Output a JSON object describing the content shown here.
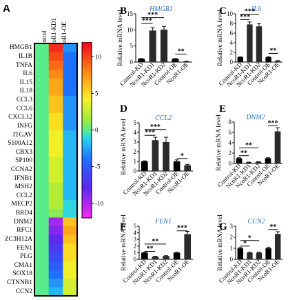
{
  "panel_a": {
    "letter": "A",
    "columns": [
      "Control",
      "NcoR1-KD1",
      "NcoR1-OE"
    ],
    "genes": [
      "HMGB1",
      "IL1B",
      "TNFA",
      "IL6",
      "IL15",
      "IL18",
      "CCL3",
      "CCL6",
      "CXCL12",
      "INFG",
      "ITGAV",
      "S100A12",
      "CBX3",
      "SP100",
      "CCNA2",
      "IFNB1",
      "MSH2",
      "CCL2",
      "MECP2",
      "BRD4",
      "DNM2",
      "RFC1",
      "ZC3H12A",
      "FEN1",
      "PLG",
      "CMA1",
      "SOX18",
      "CTNNB1",
      "CCN2"
    ],
    "colorbar_ticks": [
      "10",
      "5",
      "0",
      "-5",
      "-10"
    ]
  },
  "chart_data": [
    {
      "type": "heatmap",
      "columns": [
        "Control",
        "NcoR1-KD1",
        "NcoR1-OE"
      ],
      "rows": [
        "HMGB1",
        "IL1B",
        "TNFA",
        "IL6",
        "IL15",
        "IL18",
        "CCL3",
        "CCL6",
        "CXCL12",
        "INFG",
        "ITGAV",
        "S100A12",
        "CBX3",
        "SP100",
        "CCNA2",
        "IFNB1",
        "MSH2",
        "CCL2",
        "MECP2",
        "BRD4",
        "DNM2",
        "RFC1",
        "ZC3H12A",
        "FEN1",
        "PLG",
        "CMA1",
        "SOX18",
        "CTNNB1",
        "CCN2"
      ],
      "values": [
        [
          0,
          11,
          -3
        ],
        [
          0,
          10,
          -4
        ],
        [
          0,
          9,
          -4
        ],
        [
          0,
          8,
          -4
        ],
        [
          0,
          7,
          -4
        ],
        [
          0,
          7,
          -4
        ],
        [
          0,
          6,
          -3
        ],
        [
          0,
          6,
          -3
        ],
        [
          0,
          5,
          -3
        ],
        [
          0,
          5,
          -3
        ],
        [
          0,
          4,
          -2
        ],
        [
          0,
          4,
          -2
        ],
        [
          0,
          4,
          -2
        ],
        [
          0,
          3,
          -2
        ],
        [
          0,
          3,
          -2
        ],
        [
          0,
          3,
          -2
        ],
        [
          0,
          2,
          -2
        ],
        [
          0,
          2,
          -2
        ],
        [
          0,
          2,
          -1
        ],
        [
          0,
          1,
          -1
        ],
        [
          0,
          -10,
          6
        ],
        [
          0,
          -9,
          7
        ],
        [
          0,
          -8,
          6
        ],
        [
          0,
          -7,
          5
        ],
        [
          0,
          -6,
          5
        ],
        [
          0,
          -5,
          4
        ],
        [
          0,
          -4,
          4
        ],
        [
          0,
          -3,
          3
        ],
        [
          0,
          -2,
          3
        ]
      ],
      "vmin": -12,
      "vmax": 12,
      "colorbar_ticks": [
        10,
        5,
        0,
        -5,
        -10
      ]
    },
    {
      "type": "bar",
      "panel": "B",
      "title": "HMGB1",
      "ylabel": "Relative mRNA level",
      "categories": [
        "Control-KD",
        "NcoR1-KD1",
        "NcoR1-KD2",
        "Control-OE",
        "NcoR1-OE"
      ],
      "values": [
        1,
        9.8,
        10.1,
        1,
        0.2
      ],
      "errors": [
        0.1,
        0.9,
        1.0,
        0.1,
        0.1
      ],
      "ylim": [
        0,
        15
      ],
      "yticks": [
        0,
        5,
        10,
        15
      ],
      "sig": [
        {
          "a": 0,
          "b": 1,
          "label": "***",
          "y": 12.0
        },
        {
          "a": 0,
          "b": 2,
          "label": "***",
          "y": 13.8
        },
        {
          "a": 3,
          "b": 4,
          "label": "**",
          "y": 2.5
        }
      ]
    },
    {
      "type": "bar",
      "panel": "C",
      "title": "IL6",
      "ylabel": "Relative mRNA level",
      "categories": [
        "Control-KD",
        "NcoR1-KD1",
        "NcoR1-KD2",
        "Control-OE",
        "NcoR1-OE"
      ],
      "values": [
        1,
        7.8,
        7.4,
        1,
        0.2
      ],
      "errors": [
        0.1,
        0.5,
        0.6,
        0.1,
        0.1
      ],
      "ylim": [
        0,
        10
      ],
      "yticks": [
        0,
        2,
        4,
        6,
        8,
        10
      ],
      "sig": [
        {
          "a": 0,
          "b": 1,
          "label": "***",
          "y": 8.8
        },
        {
          "a": 0,
          "b": 2,
          "label": "***",
          "y": 9.9
        },
        {
          "a": 3,
          "b": 4,
          "label": "**",
          "y": 1.8
        }
      ]
    },
    {
      "type": "bar",
      "panel": "D",
      "title": "CCL2",
      "ylabel": "Relative mRNA level",
      "categories": [
        "Control-KD",
        "NcoR1-KD1",
        "NcoR1-KD2",
        "Control-OE",
        "NcoR1-OE"
      ],
      "values": [
        1,
        3.2,
        3.0,
        1,
        0.6
      ],
      "errors": [
        0.05,
        0.3,
        0.5,
        0.15,
        0.1
      ],
      "ylim": [
        0,
        5
      ],
      "yticks": [
        0,
        1,
        2,
        3,
        4,
        5
      ],
      "sig": [
        {
          "a": 0,
          "b": 1,
          "label": "***",
          "y": 3.7
        },
        {
          "a": 0,
          "b": 2,
          "label": "***",
          "y": 4.3
        },
        {
          "a": 3,
          "b": 4,
          "label": "*",
          "y": 1.3
        }
      ]
    },
    {
      "type": "bar",
      "panel": "E",
      "title": "DNM2",
      "ylabel": "Relative mRNA level",
      "categories": [
        "Control-KD",
        "NcoR1-KD1",
        "NcoR1-KD2",
        "Control-OE",
        "NcoR1-OE"
      ],
      "values": [
        1,
        0.2,
        0.3,
        1,
        6.2
      ],
      "errors": [
        0.1,
        0.05,
        0.05,
        0.1,
        0.7
      ],
      "ylim": [
        0,
        8
      ],
      "yticks": [
        0,
        2,
        4,
        6,
        8
      ],
      "sig": [
        {
          "a": 0,
          "b": 1,
          "label": "**",
          "y": 1.5
        },
        {
          "a": 0,
          "b": 2,
          "label": "**",
          "y": 3.0
        },
        {
          "a": 3,
          "b": 4,
          "label": "***",
          "y": 7.3
        }
      ]
    },
    {
      "type": "bar",
      "panel": "F",
      "title": "FEN1",
      "ylabel": "Relative mRNA level",
      "categories": [
        "Control-KD",
        "NcoR1-KD1",
        "NcoR1-KD2",
        "Control-OE",
        "NcoR1-OE"
      ],
      "values": [
        1,
        0.4,
        0.5,
        1,
        3.8
      ],
      "errors": [
        0.1,
        0.05,
        0.05,
        0.1,
        0.4
      ],
      "ylim": [
        0,
        5
      ],
      "yticks": [
        0,
        1,
        2,
        3,
        4,
        5
      ],
      "sig": [
        {
          "a": 0,
          "b": 1,
          "label": "**",
          "y": 1.2
        },
        {
          "a": 0,
          "b": 2,
          "label": "**",
          "y": 2.3
        },
        {
          "a": 3,
          "b": 4,
          "label": "***",
          "y": 4.3
        }
      ]
    },
    {
      "type": "bar",
      "panel": "G",
      "title": "CCN2",
      "ylabel": "Relative mRNA level",
      "categories": [
        "Control-KD",
        "NcoR1-KD1",
        "NcoR1-KD2",
        "Control-OE",
        "NcoR1-OE"
      ],
      "values": [
        1,
        0.6,
        0.6,
        1,
        2.3
      ],
      "errors": [
        0.1,
        0.05,
        0.05,
        0.1,
        0.2
      ],
      "ylim": [
        0,
        3
      ],
      "yticks": [
        0,
        1,
        2,
        3
      ],
      "sig": [
        {
          "a": 0,
          "b": 1,
          "label": "*",
          "y": 1.2
        },
        {
          "a": 0,
          "b": 2,
          "label": "*",
          "y": 1.7
        },
        {
          "a": 3,
          "b": 4,
          "label": "**",
          "y": 2.7
        }
      ]
    }
  ]
}
